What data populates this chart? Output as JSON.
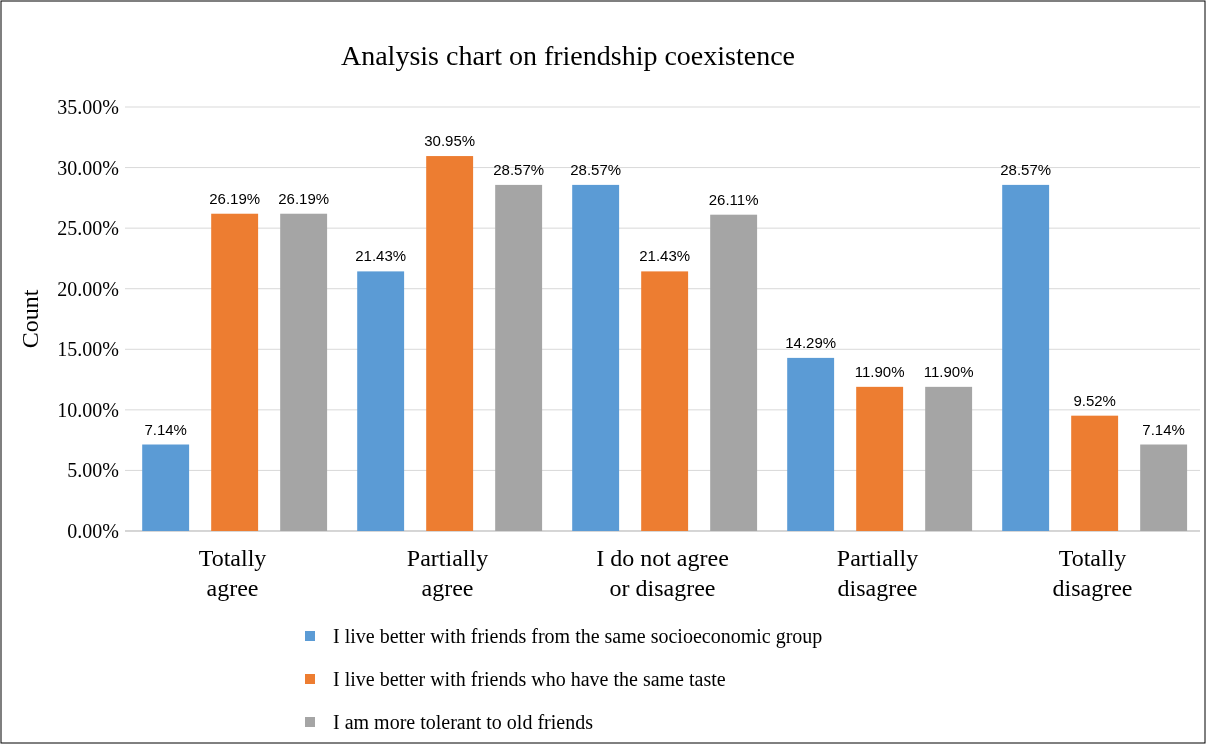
{
  "chart_data": {
    "type": "bar",
    "title": "Analysis chart on friendship coexistence",
    "ylabel": "Count",
    "categories": [
      "Totally\nagree",
      "Partially\nagree",
      "I do not agree\nor disagree",
      "Partially\ndisagree",
      "Totally\ndisagree"
    ],
    "series": [
      {
        "name": "I live better with friends from the same socioeconomic group",
        "color": "#5b9bd5",
        "values": [
          7.14,
          21.43,
          28.57,
          14.29,
          28.57
        ],
        "value_labels": [
          "7.14%",
          "21.43%",
          "28.57%",
          "14.29%",
          "28.57%"
        ]
      },
      {
        "name": "I live better with friends who have the same taste",
        "color": "#ed7d31",
        "values": [
          26.19,
          30.95,
          21.43,
          11.9,
          9.52
        ],
        "value_labels": [
          "26.19%",
          "30.95%",
          "21.43%",
          "11.90%",
          "9.52%"
        ]
      },
      {
        "name": "I am more tolerant to old friends",
        "color": "#a5a5a5",
        "values": [
          26.19,
          28.57,
          26.11,
          11.9,
          7.14
        ],
        "value_labels": [
          "26.19%",
          "28.57%",
          "26.11%",
          "11.90%",
          "7.14%"
        ]
      }
    ],
    "ylim": [
      0,
      35
    ],
    "yticks": [
      {
        "value": 0,
        "label": "0.00%"
      },
      {
        "value": 5,
        "label": "5.00%"
      },
      {
        "value": 10,
        "label": "10.00%"
      },
      {
        "value": 15,
        "label": "15.00%"
      },
      {
        "value": 20,
        "label": "20.00%"
      },
      {
        "value": 25,
        "label": "25.00%"
      },
      {
        "value": 30,
        "label": "30.00%"
      },
      {
        "value": 35,
        "label": "35.00%"
      }
    ],
    "grid": "y",
    "legend": "bottom"
  }
}
